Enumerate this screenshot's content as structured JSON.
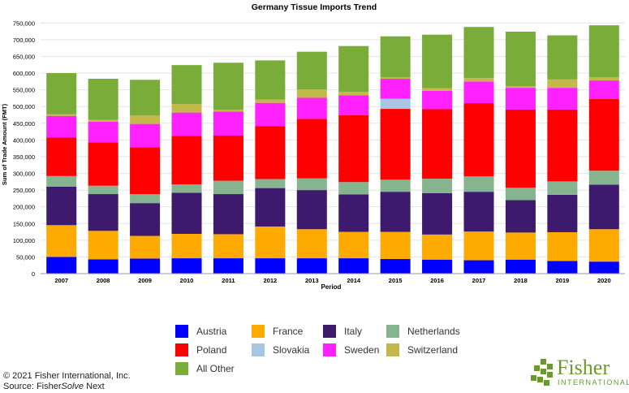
{
  "chart_data": {
    "type": "bar",
    "stacked": true,
    "title": "Germany Tissue Imports Trend",
    "xlabel": "Period",
    "ylabel": "Sum of Trade Amount (FMT)",
    "ylim": [
      0,
      775000
    ],
    "yticks": [
      0,
      50000,
      100000,
      150000,
      200000,
      250000,
      300000,
      350000,
      400000,
      450000,
      500000,
      550000,
      600000,
      650000,
      700000,
      750000
    ],
    "ytick_labels": [
      "0",
      "50,000",
      "100,000",
      "150,000",
      "200,000",
      "250,000",
      "300,000",
      "350,000",
      "400,000",
      "450,000",
      "500,000",
      "550,000",
      "600,000",
      "650,000",
      "700,000",
      "750,000"
    ],
    "grid": true,
    "legend_position": "bottom",
    "categories": [
      "2007",
      "2008",
      "2009",
      "2010",
      "2011",
      "2012",
      "2013",
      "2014",
      "2015",
      "2016",
      "2017",
      "2018",
      "2019",
      "2020"
    ],
    "series": [
      {
        "name": "Austria",
        "color": "#0000ff",
        "values": [
          50000,
          43000,
          45000,
          46000,
          46000,
          46000,
          46000,
          46000,
          44000,
          42000,
          40000,
          42000,
          38000,
          36000
        ]
      },
      {
        "name": "France",
        "color": "#ffaa00",
        "values": [
          95000,
          85000,
          68000,
          73000,
          72000,
          95000,
          87000,
          79000,
          81000,
          75000,
          86000,
          81000,
          86000,
          97000
        ]
      },
      {
        "name": "Italy",
        "color": "#3d1a6e",
        "values": [
          115000,
          110000,
          98000,
          123000,
          120000,
          115000,
          117000,
          112000,
          120000,
          124000,
          119000,
          97000,
          112000,
          133000
        ]
      },
      {
        "name": "Netherlands",
        "color": "#86b48e",
        "values": [
          32000,
          25000,
          27000,
          25000,
          40000,
          27000,
          35000,
          37000,
          36000,
          43000,
          46000,
          37000,
          40000,
          42000
        ]
      },
      {
        "name": "Poland",
        "color": "#ff0000",
        "values": [
          115000,
          130000,
          140000,
          145000,
          135000,
          158000,
          178000,
          200000,
          212000,
          208000,
          219000,
          234000,
          215000,
          215000
        ]
      },
      {
        "name": "Slovakia",
        "color": "#a7c7e0",
        "values": [
          0,
          0,
          0,
          0,
          0,
          0,
          0,
          0,
          30000,
          0,
          0,
          0,
          0,
          0
        ]
      },
      {
        "name": "Sweden",
        "color": "#ff22ff",
        "values": [
          65000,
          62000,
          70000,
          70000,
          72000,
          70000,
          63000,
          60000,
          60000,
          55000,
          65000,
          65000,
          65000,
          55000
        ]
      },
      {
        "name": "Switzerland",
        "color": "#c5b84a",
        "values": [
          5000,
          5000,
          25000,
          25000,
          5000,
          10000,
          25000,
          10000,
          5000,
          8000,
          10000,
          5000,
          25000,
          10000
        ]
      },
      {
        "name": "All Other",
        "color": "#7aac3a",
        "values": [
          123000,
          123000,
          107000,
          117000,
          141000,
          117000,
          113000,
          137000,
          122000,
          160000,
          153000,
          163000,
          132000,
          155000
        ]
      }
    ]
  },
  "footer": {
    "copyright": "© 2021 Fisher International, Inc.",
    "source_prefix": "Source: Fisher",
    "source_italic": "Solve",
    "source_suffix": " Next"
  },
  "logo": {
    "word": "Fisher",
    "sub": "INTERNATIONAL"
  }
}
